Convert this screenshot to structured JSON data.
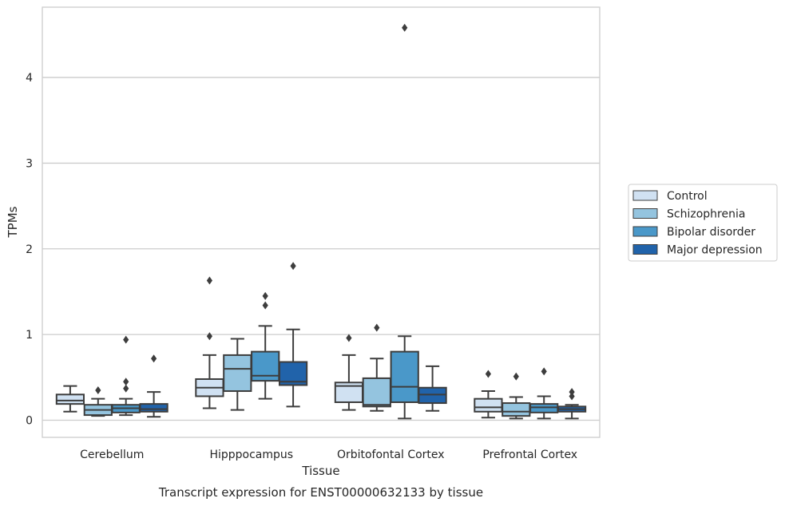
{
  "chart_data": {
    "type": "box",
    "xlabel": "Tissue",
    "ylabel": "TPMs",
    "caption": "Transcript expression for ENST00000632133 by tissue",
    "ylim": [
      -0.2,
      4.82
    ],
    "yticks": [
      0,
      1,
      2,
      3,
      4
    ],
    "grid": "y",
    "legend_position": "right",
    "categories": [
      "Cerebellum",
      "Hipppocampus",
      "Orbitofontal Cortex",
      "Prefrontal Cortex"
    ],
    "series": [
      {
        "name": "Control",
        "color": "#d0e1f2",
        "boxes": [
          {
            "whislo": 0.1,
            "q1": 0.19,
            "med": 0.23,
            "q3": 0.3,
            "whishi": 0.4,
            "fliers": []
          },
          {
            "whislo": 0.14,
            "q1": 0.28,
            "med": 0.38,
            "q3": 0.48,
            "whishi": 0.76,
            "fliers": [
              0.98,
              1.63
            ]
          },
          {
            "whislo": 0.12,
            "q1": 0.21,
            "med": 0.4,
            "q3": 0.44,
            "whishi": 0.76,
            "fliers": [
              0.96
            ]
          },
          {
            "whislo": 0.03,
            "q1": 0.1,
            "med": 0.15,
            "q3": 0.25,
            "whishi": 0.34,
            "fliers": [
              0.54
            ]
          }
        ]
      },
      {
        "name": "Schizophrenia",
        "color": "#94c4df",
        "boxes": [
          {
            "whislo": 0.05,
            "q1": 0.06,
            "med": 0.12,
            "q3": 0.18,
            "whishi": 0.25,
            "fliers": [
              0.35
            ]
          },
          {
            "whislo": 0.12,
            "q1": 0.34,
            "med": 0.6,
            "q3": 0.76,
            "whishi": 0.95,
            "fliers": []
          },
          {
            "whislo": 0.11,
            "q1": 0.16,
            "med": 0.18,
            "q3": 0.49,
            "whishi": 0.72,
            "fliers": [
              1.08
            ]
          },
          {
            "whislo": 0.02,
            "q1": 0.05,
            "med": 0.1,
            "q3": 0.2,
            "whishi": 0.27,
            "fliers": [
              0.51
            ]
          }
        ]
      },
      {
        "name": "Bipolar disorder",
        "color": "#4a98c9",
        "boxes": [
          {
            "whislo": 0.06,
            "q1": 0.09,
            "med": 0.14,
            "q3": 0.18,
            "whishi": 0.25,
            "fliers": [
              0.37,
              0.45,
              0.94
            ]
          },
          {
            "whislo": 0.25,
            "q1": 0.46,
            "med": 0.52,
            "q3": 0.8,
            "whishi": 1.1,
            "fliers": [
              1.34,
              1.45
            ]
          },
          {
            "whislo": 0.02,
            "q1": 0.21,
            "med": 0.39,
            "q3": 0.8,
            "whishi": 0.98,
            "fliers": [
              4.58
            ]
          },
          {
            "whislo": 0.02,
            "q1": 0.09,
            "med": 0.15,
            "q3": 0.19,
            "whishi": 0.28,
            "fliers": [
              0.57
            ]
          }
        ]
      },
      {
        "name": "Major depression",
        "color": "#2163aa",
        "boxes": [
          {
            "whislo": 0.04,
            "q1": 0.1,
            "med": 0.13,
            "q3": 0.19,
            "whishi": 0.33,
            "fliers": [
              0.72
            ]
          },
          {
            "whislo": 0.16,
            "q1": 0.41,
            "med": 0.45,
            "q3": 0.68,
            "whishi": 1.06,
            "fliers": [
              1.8
            ]
          },
          {
            "whislo": 0.11,
            "q1": 0.2,
            "med": 0.3,
            "q3": 0.38,
            "whishi": 0.63,
            "fliers": []
          },
          {
            "whislo": 0.02,
            "q1": 0.1,
            "med": 0.13,
            "q3": 0.16,
            "whishi": 0.18,
            "fliers": [
              0.28,
              0.33
            ]
          }
        ]
      }
    ]
  }
}
